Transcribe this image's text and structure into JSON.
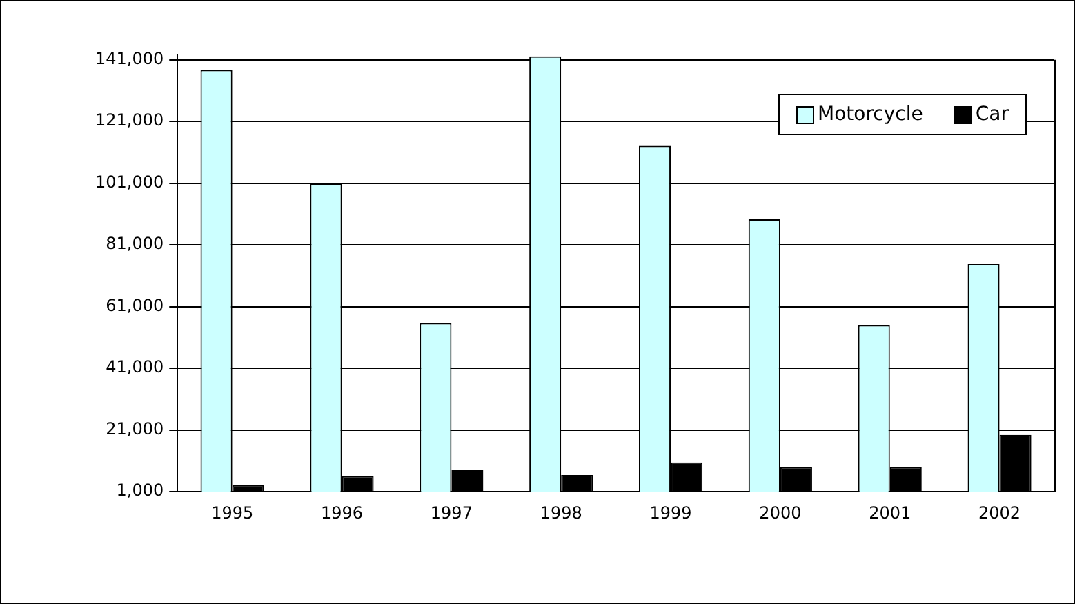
{
  "chart_data": {
    "type": "bar",
    "categories": [
      "1995",
      "1996",
      "1997",
      "1998",
      "1999",
      "2000",
      "2001",
      "2002"
    ],
    "series": [
      {
        "name": "Motorcycle",
        "color": "#ccffff",
        "values": [
          137700,
          100700,
          55700,
          142100,
          113100,
          89300,
          55000,
          74800
        ]
      },
      {
        "name": "Car",
        "color": "#000000",
        "values": [
          3100,
          6100,
          8000,
          6400,
          10500,
          9000,
          9000,
          19400
        ]
      }
    ],
    "ylim": [
      1000,
      142500
    ],
    "yticks": [
      {
        "value": 1000,
        "label": "1,000"
      },
      {
        "value": 21000,
        "label": "21,000"
      },
      {
        "value": 41000,
        "label": "41,000"
      },
      {
        "value": 61000,
        "label": "61,000"
      },
      {
        "value": 81000,
        "label": "81,000"
      },
      {
        "value": 101000,
        "label": "101,000"
      },
      {
        "value": 121000,
        "label": "121,000"
      },
      {
        "value": 141000,
        "label": "141,000"
      }
    ],
    "grid": "y",
    "legend": "top right"
  }
}
